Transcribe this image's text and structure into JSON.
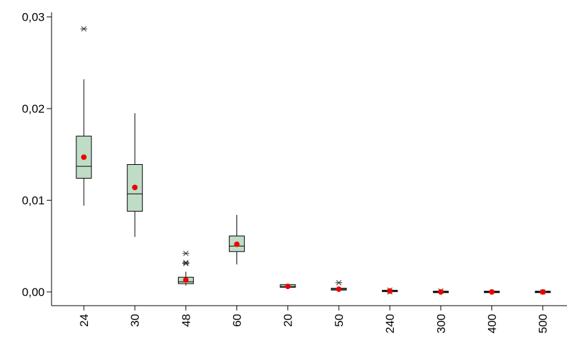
{
  "chart_data": {
    "type": "box",
    "title": "",
    "xlabel": "",
    "ylabel": "",
    "ylim": [
      -0.0015,
      0.0305
    ],
    "y_ticks": [
      0.0,
      0.01,
      0.02,
      0.03
    ],
    "y_tick_labels": [
      "0,00",
      "0,01",
      "0,02",
      "0,03"
    ],
    "categories": [
      "24",
      "30",
      "48",
      "60",
      "20",
      "50",
      "240",
      "300",
      "400",
      "500"
    ],
    "colors": {
      "box_fill": "#bfdcc6",
      "mean_marker": "#ee0000",
      "outlier": "#333333",
      "line": "#000000"
    },
    "series": [
      {
        "category": "24",
        "whisker_low": 0.0094,
        "q1": 0.0124,
        "median": 0.0137,
        "q3": 0.017,
        "whisker_high": 0.0232,
        "mean": 0.0147,
        "outliers": [
          0.0287
        ]
      },
      {
        "category": "30",
        "whisker_low": 0.006,
        "q1": 0.0088,
        "median": 0.0107,
        "q3": 0.0139,
        "whisker_high": 0.0195,
        "mean": 0.0114,
        "outliers": []
      },
      {
        "category": "48",
        "whisker_low": 0.0007,
        "q1": 0.0009,
        "median": 0.0011,
        "q3": 0.0016,
        "whisker_high": 0.0022,
        "mean": 0.0013,
        "outliers": [
          0.0031,
          0.0032,
          0.0042
        ]
      },
      {
        "category": "60",
        "whisker_low": 0.003,
        "q1": 0.0044,
        "median": 0.005,
        "q3": 0.0061,
        "whisker_high": 0.0084,
        "mean": 0.0052,
        "outliers": []
      },
      {
        "category": "20",
        "whisker_low": 0.0004,
        "q1": 0.0005,
        "median": 0.0006,
        "q3": 0.0008,
        "whisker_high": 0.0009,
        "mean": 0.0006,
        "outliers": []
      },
      {
        "category": "50",
        "whisker_low": 0.0002,
        "q1": 0.0002,
        "median": 0.0003,
        "q3": 0.0004,
        "whisker_high": 0.0004,
        "mean": 0.0003,
        "outliers": [
          0.001
        ]
      },
      {
        "category": "240",
        "whisker_low": 0.0,
        "q1": 0.0001,
        "median": 0.0001,
        "q3": 0.0001,
        "whisker_high": 0.0002,
        "mean": 0.0001,
        "outliers": [
          0.0002,
          0.0
        ]
      },
      {
        "category": "300",
        "whisker_low": 0.0,
        "q1": 0.0,
        "median": 0.0,
        "q3": 0.0,
        "whisker_high": 0.0001,
        "mean": 0.0,
        "outliers": [
          0.0001
        ]
      },
      {
        "category": "400",
        "whisker_low": 0.0,
        "q1": 0.0,
        "median": 0.0,
        "q3": 0.0,
        "whisker_high": 0.0,
        "mean": 0.0,
        "outliers": []
      },
      {
        "category": "500",
        "whisker_low": 0.0,
        "q1": 0.0,
        "median": 0.0,
        "q3": 0.0,
        "whisker_high": 0.0,
        "mean": 0.0,
        "outliers": [
          0.0
        ]
      }
    ],
    "grid": false,
    "legend": "none"
  }
}
